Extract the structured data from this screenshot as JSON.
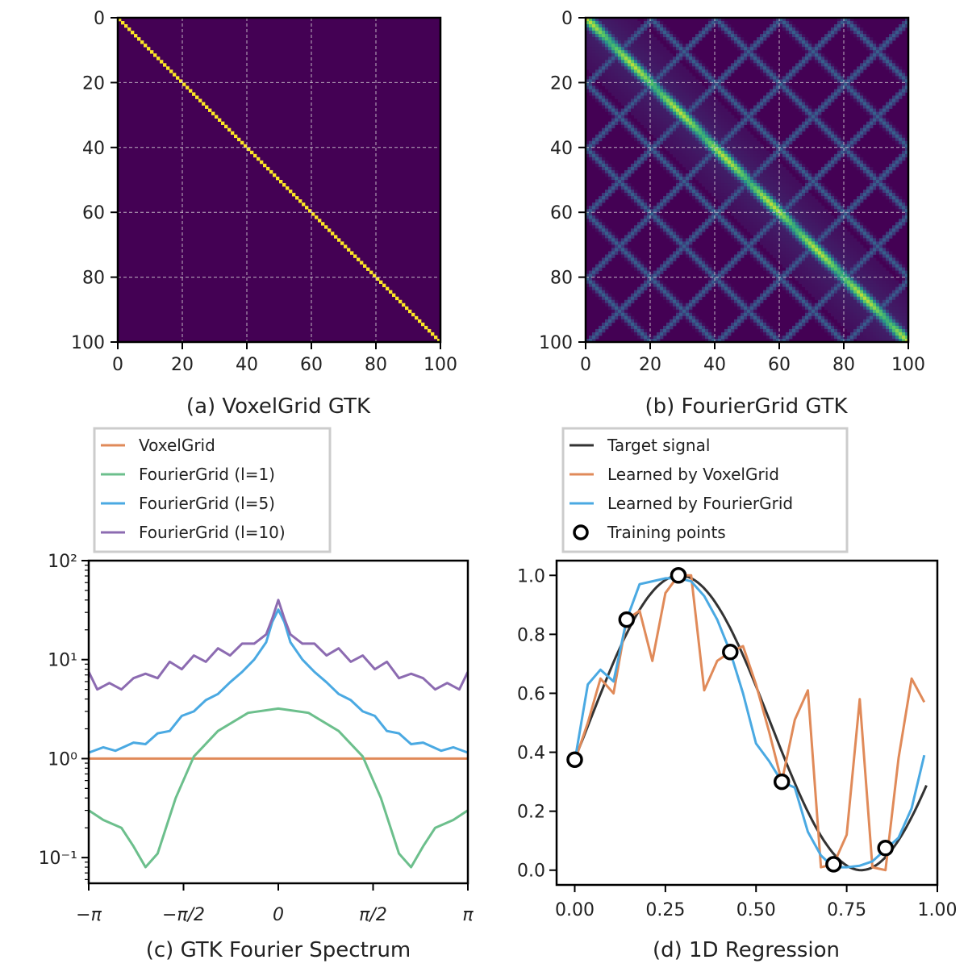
{
  "chart_data": [
    {
      "type": "heatmap",
      "caption": "(a) VoxelGrid GTK",
      "xlim": [
        0,
        100
      ],
      "ylim": [
        100,
        0
      ],
      "xticks": [
        "0",
        "20",
        "40",
        "60",
        "80",
        "100"
      ],
      "yticks": [
        "0",
        "20",
        "40",
        "60",
        "80",
        "100"
      ],
      "grid": true,
      "colormap": "viridis",
      "pattern": "identity diagonal (value 1 on i=j, 0 elsewhere)"
    },
    {
      "type": "heatmap",
      "caption": "(b) FourierGrid GTK",
      "xlim": [
        0,
        100
      ],
      "ylim": [
        100,
        0
      ],
      "xticks": [
        "0",
        "20",
        "40",
        "60",
        "80",
        "100"
      ],
      "yticks": [
        "0",
        "20",
        "40",
        "60",
        "80",
        "100"
      ],
      "grid": true,
      "colormap": "viridis",
      "pattern": "bright main diagonal with lattice of fainter off-diagonal bands"
    },
    {
      "type": "line",
      "caption": "(c) GTK Fourier Spectrum",
      "yscale": "log",
      "xlim": [
        -3.1416,
        3.1416
      ],
      "ylim": [
        0.055,
        100
      ],
      "xticks": [
        "−π",
        "−π/2",
        "0",
        "π/2",
        "π"
      ],
      "yticks": [
        "10⁻¹",
        "10⁰",
        "10¹",
        "10²"
      ],
      "legend_position": "above",
      "series": [
        {
          "name": "VoxelGrid",
          "color": "#e08a59",
          "x": [
            -3.1416,
            3.1416
          ],
          "y": [
            1.0,
            1.0
          ]
        },
        {
          "name": "FourierGrid (l=1)",
          "color": "#6cbf8c",
          "x": [
            -3.14,
            -2.9,
            -2.6,
            -2.4,
            -2.2,
            -2.0,
            -1.7,
            -1.4,
            -1.0,
            -0.5,
            0,
            0.5,
            1.0,
            1.4,
            1.7,
            2.0,
            2.2,
            2.4,
            2.6,
            2.9,
            3.14
          ],
          "y": [
            0.3,
            0.24,
            0.2,
            0.13,
            0.08,
            0.11,
            0.4,
            1.05,
            1.9,
            2.9,
            3.2,
            2.9,
            1.9,
            1.05,
            0.4,
            0.11,
            0.08,
            0.13,
            0.2,
            0.24,
            0.3
          ]
        },
        {
          "name": "FourierGrid (l=5)",
          "color": "#4aa9e2",
          "x": [
            -3.14,
            -2.9,
            -2.7,
            -2.4,
            -2.2,
            -2.0,
            -1.8,
            -1.6,
            -1.4,
            -1.2,
            -1.0,
            -0.8,
            -0.6,
            -0.4,
            -0.2,
            -0.1,
            0,
            0.1,
            0.2,
            0.4,
            0.6,
            0.8,
            1.0,
            1.2,
            1.4,
            1.6,
            1.8,
            2.0,
            2.2,
            2.4,
            2.7,
            2.9,
            3.14
          ],
          "y": [
            1.15,
            1.3,
            1.2,
            1.45,
            1.4,
            1.8,
            1.9,
            2.7,
            3.0,
            3.9,
            4.5,
            5.9,
            7.5,
            10,
            15,
            24,
            32,
            24,
            15,
            10,
            7.5,
            5.9,
            4.5,
            3.9,
            3.0,
            2.7,
            1.9,
            1.8,
            1.4,
            1.45,
            1.2,
            1.3,
            1.15
          ]
        },
        {
          "name": "FourierGrid (l=10)",
          "color": "#8c6bb1",
          "x": [
            -3.14,
            -3.0,
            -2.8,
            -2.6,
            -2.4,
            -2.2,
            -2.0,
            -1.8,
            -1.6,
            -1.4,
            -1.2,
            -1.0,
            -0.8,
            -0.6,
            -0.4,
            -0.2,
            -0.1,
            0,
            0.1,
            0.2,
            0.4,
            0.6,
            0.8,
            1.0,
            1.2,
            1.4,
            1.6,
            1.8,
            2.0,
            2.2,
            2.4,
            2.6,
            2.8,
            3.0,
            3.14
          ],
          "y": [
            7.5,
            5.0,
            5.8,
            5.0,
            6.5,
            7.2,
            6.5,
            9.5,
            8.0,
            11,
            9.5,
            13,
            11,
            14.5,
            14.5,
            18,
            26,
            40,
            26,
            18,
            14.5,
            14.5,
            11,
            13,
            9.5,
            11,
            8.0,
            9.5,
            6.5,
            7.2,
            6.5,
            5.0,
            5.8,
            5.0,
            7.5
          ]
        }
      ]
    },
    {
      "type": "line",
      "caption": "(d) 1D Regression",
      "xlim": [
        -0.05,
        1.0
      ],
      "ylim": [
        -0.05,
        1.05
      ],
      "xticks": [
        "0.00",
        "0.25",
        "0.50",
        "0.75",
        "1.00"
      ],
      "yticks": [
        "0.0",
        "0.2",
        "0.4",
        "0.6",
        "0.8",
        "1.0"
      ],
      "legend_position": "above",
      "series": [
        {
          "name": "Target signal",
          "color": "#333333",
          "function": "0.5+0.5*sin(2*pi*x - 0.25)",
          "x_range": [
            0,
            0.97
          ]
        },
        {
          "name": "Learned by VoxelGrid",
          "color": "#e08a59",
          "x": [
            0.0,
            0.036,
            0.071,
            0.107,
            0.143,
            0.179,
            0.214,
            0.25,
            0.286,
            0.321,
            0.357,
            0.393,
            0.429,
            0.464,
            0.5,
            0.536,
            0.571,
            0.607,
            0.643,
            0.679,
            0.714,
            0.75,
            0.786,
            0.821,
            0.857,
            0.893,
            0.929,
            0.964
          ],
          "y": [
            0.37,
            0.5,
            0.65,
            0.6,
            0.85,
            0.88,
            0.71,
            0.94,
            1.0,
            1.0,
            0.61,
            0.71,
            0.74,
            0.76,
            0.63,
            0.47,
            0.3,
            0.51,
            0.61,
            0.01,
            0.02,
            0.12,
            0.58,
            0.01,
            0.0,
            0.38,
            0.65,
            0.57
          ]
        },
        {
          "name": "Learned by FourierGrid",
          "color": "#4aa9e2",
          "x": [
            0.0,
            0.036,
            0.071,
            0.107,
            0.143,
            0.179,
            0.214,
            0.25,
            0.286,
            0.321,
            0.357,
            0.393,
            0.429,
            0.464,
            0.5,
            0.536,
            0.571,
            0.607,
            0.643,
            0.679,
            0.714,
            0.75,
            0.786,
            0.821,
            0.857,
            0.893,
            0.929,
            0.964
          ],
          "y": [
            0.37,
            0.63,
            0.68,
            0.64,
            0.85,
            0.97,
            0.98,
            0.99,
            0.99,
            0.98,
            0.93,
            0.85,
            0.74,
            0.6,
            0.43,
            0.37,
            0.3,
            0.28,
            0.13,
            0.05,
            0.01,
            0.01,
            0.015,
            0.03,
            0.07,
            0.11,
            0.21,
            0.39
          ]
        },
        {
          "name": "Training points",
          "color": "#000000",
          "marker": "o",
          "x": [
            0.0,
            0.143,
            0.286,
            0.429,
            0.571,
            0.714,
            0.857
          ],
          "y": [
            0.375,
            0.85,
            1.0,
            0.74,
            0.3,
            0.02,
            0.075
          ]
        }
      ]
    }
  ]
}
